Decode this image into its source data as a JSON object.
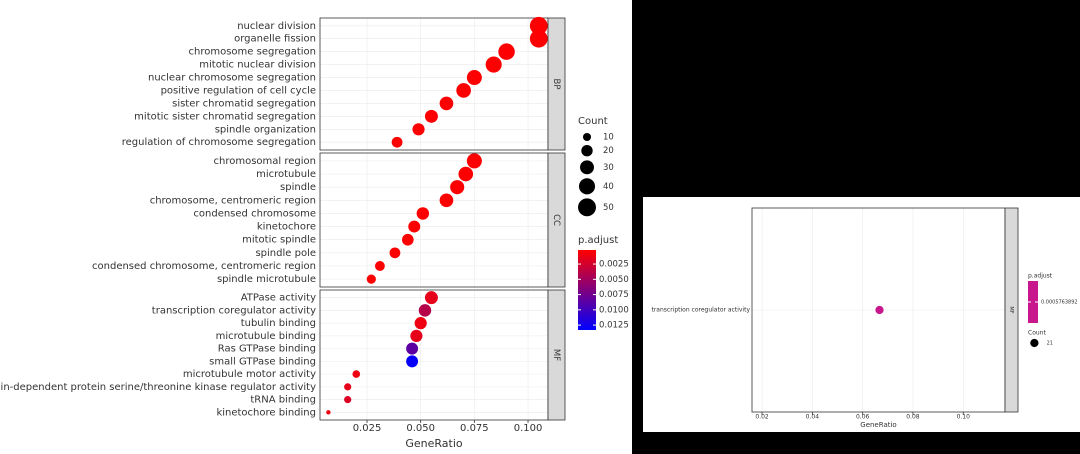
{
  "chart_data": [
    {
      "type": "dot",
      "x_label": "GeneRatio",
      "xlim": [
        0.0031,
        0.1093
      ],
      "xticks": [
        0.025,
        {
          "value": 0.05,
          "label": "0.050"
        },
        0.075,
        {
          "value": 0.1,
          "label": "0.100"
        }
      ],
      "grid": true,
      "color_low": "#ff0000",
      "color_high": "#0000ff",
      "size_legend": {
        "title": "Count",
        "ticks": [
          10,
          20,
          30,
          40,
          50
        ]
      },
      "color_legend": {
        "title": "p.adjust",
        "lim": [
          0.0002,
          0.0133
        ],
        "ticks": [
          0.0025,
          {
            "value": 0.005,
            "label": "0.0050"
          },
          0.0075,
          {
            "value": 0.01,
            "label": "0.0100"
          },
          0.0125
        ]
      },
      "facets": [
        {
          "name": "BP",
          "categories": [
            "nuclear division",
            "organelle fission",
            "chromosome segregation",
            "mitotic nuclear division",
            "nuclear chromosome segregation",
            "positive regulation of cell cycle",
            "sister chromatid segregation",
            "mitotic sister chromatid segregation",
            "spindle organization",
            "regulation of chromosome segregation"
          ],
          "values": [
            0.105,
            0.105,
            0.09,
            0.084,
            0.075,
            0.07,
            0.062,
            0.055,
            0.049,
            0.039
          ],
          "counts": [
            49,
            49,
            42,
            40,
            35,
            33,
            29,
            26,
            23,
            18
          ],
          "p_adjust": [
            0.0003,
            0.0003,
            0.0003,
            0.0003,
            0.0003,
            0.0003,
            0.0003,
            0.0003,
            0.0003,
            0.0003
          ]
        },
        {
          "name": "CC",
          "categories": [
            "chromosomal region",
            "microtubule",
            "spindle",
            "chromosome, centromeric region",
            "condensed chromosome",
            "kinetochore",
            "mitotic spindle",
            "spindle pole",
            "condensed chromosome, centromeric region",
            "spindle microtubule"
          ],
          "values": [
            0.075,
            0.071,
            0.067,
            0.062,
            0.051,
            0.047,
            0.044,
            0.038,
            0.031,
            0.027
          ],
          "counts": [
            35,
            33,
            31,
            29,
            24,
            22,
            21,
            18,
            15,
            13
          ],
          "p_adjust": [
            0.0003,
            0.0003,
            0.0003,
            0.0003,
            0.0003,
            0.0003,
            0.0003,
            0.0003,
            0.0003,
            0.0003
          ]
        },
        {
          "name": "MF",
          "categories": [
            "ATPase activity",
            "transcription coregulator activity",
            "tubulin binding",
            "microtubule binding",
            "Ras GTPase binding",
            "small GTPase binding",
            "microtubule motor activity",
            "cyclin-dependent protein serine/threonine kinase regulator activity",
            "tRNA binding",
            "kinetochore binding"
          ],
          "values": [
            0.055,
            0.052,
            0.05,
            0.048,
            0.046,
            0.046,
            0.02,
            0.016,
            0.016,
            0.007
          ],
          "counts": [
            26,
            24,
            23,
            23,
            22,
            22,
            9,
            8,
            8,
            3
          ],
          "p_adjust": [
            0.0015,
            0.004,
            0.001,
            0.0015,
            0.0085,
            0.013,
            0.001,
            0.0015,
            0.002,
            0.001
          ]
        }
      ]
    },
    {
      "type": "dot",
      "x_label": "GeneRatio",
      "xlim": [
        0.016,
        0.1166
      ],
      "xticks": [
        0.02,
        0.04,
        0.06,
        0.08,
        {
          "value": 0.1,
          "label": "0.10"
        }
      ],
      "grid": true,
      "color": "#c8168c",
      "size_legend": {
        "title": "Count",
        "ticks": [
          21
        ]
      },
      "color_legend": {
        "title": "p.adjust",
        "ticks": [
          0.0005763892
        ]
      },
      "facets": [
        {
          "name": "MF",
          "categories": [
            "transcription coregulator activity"
          ],
          "values": [
            0.0667
          ],
          "counts": [
            21
          ],
          "p_adjust": [
            0.0005763892
          ]
        }
      ]
    }
  ]
}
